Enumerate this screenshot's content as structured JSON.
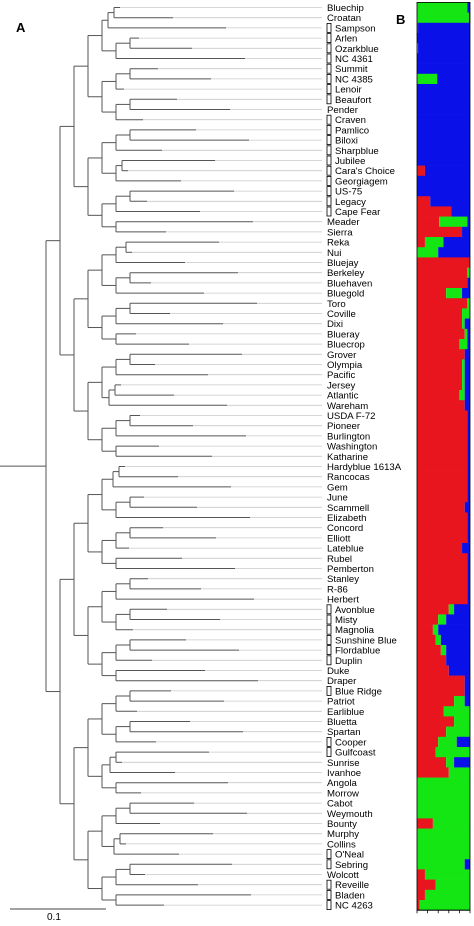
{
  "panels": {
    "a": "A",
    "b": "B"
  },
  "scale_bar_label": "0.1",
  "colors": {
    "red": "#e8141e",
    "green": "#14e614",
    "blue": "#0a10e8",
    "tree": "#555555",
    "terminal": "#c9c9c9"
  },
  "cultivars": [
    {
      "name": "Bluechip",
      "bracket": false
    },
    {
      "name": "Croatan",
      "bracket": false
    },
    {
      "name": "Sampson",
      "bracket": true
    },
    {
      "name": "Arlen",
      "bracket": true
    },
    {
      "name": "Ozarkblue",
      "bracket": true
    },
    {
      "name": "NC 4361",
      "bracket": true
    },
    {
      "name": "Summit",
      "bracket": true
    },
    {
      "name": "NC 4385",
      "bracket": true
    },
    {
      "name": "Lenoir",
      "bracket": true
    },
    {
      "name": "Beaufort",
      "bracket": true
    },
    {
      "name": "Pender",
      "bracket": false
    },
    {
      "name": "Craven",
      "bracket": true
    },
    {
      "name": "Pamlico",
      "bracket": true
    },
    {
      "name": "Biloxi",
      "bracket": true
    },
    {
      "name": "Sharpblue",
      "bracket": true
    },
    {
      "name": "Jubilee",
      "bracket": true
    },
    {
      "name": "Cara's Choice",
      "bracket": true
    },
    {
      "name": "Georgiagem",
      "bracket": true
    },
    {
      "name": "US-75",
      "bracket": true
    },
    {
      "name": "Legacy",
      "bracket": true
    },
    {
      "name": "Cape Fear",
      "bracket": true
    },
    {
      "name": "Meader",
      "bracket": false
    },
    {
      "name": "Sierra",
      "bracket": false
    },
    {
      "name": "Reka",
      "bracket": false
    },
    {
      "name": "Nui",
      "bracket": false
    },
    {
      "name": "Bluejay",
      "bracket": false
    },
    {
      "name": "Berkeley",
      "bracket": false
    },
    {
      "name": "Bluehaven",
      "bracket": false
    },
    {
      "name": "Bluegold",
      "bracket": false
    },
    {
      "name": "Toro",
      "bracket": false
    },
    {
      "name": "Coville",
      "bracket": false
    },
    {
      "name": "Dixi",
      "bracket": false
    },
    {
      "name": "Blueray",
      "bracket": false
    },
    {
      "name": "Bluecrop",
      "bracket": false
    },
    {
      "name": "Grover",
      "bracket": false
    },
    {
      "name": "Olympia",
      "bracket": false
    },
    {
      "name": "Pacific",
      "bracket": false
    },
    {
      "name": "Jersey",
      "bracket": false
    },
    {
      "name": "Atlantic",
      "bracket": false
    },
    {
      "name": "Wareham",
      "bracket": false
    },
    {
      "name": "USDA F-72",
      "bracket": false
    },
    {
      "name": "Pioneer",
      "bracket": false
    },
    {
      "name": "Burlington",
      "bracket": false
    },
    {
      "name": "Washington",
      "bracket": false
    },
    {
      "name": "Katharine",
      "bracket": false
    },
    {
      "name": "Hardyblue 1613A",
      "bracket": false
    },
    {
      "name": "Rancocas",
      "bracket": false
    },
    {
      "name": "Gem",
      "bracket": false
    },
    {
      "name": "June",
      "bracket": false
    },
    {
      "name": "Scammell",
      "bracket": false
    },
    {
      "name": "Elizabeth",
      "bracket": false
    },
    {
      "name": "Concord",
      "bracket": false
    },
    {
      "name": "Elliott",
      "bracket": false
    },
    {
      "name": "Lateblue",
      "bracket": false
    },
    {
      "name": "Rubel",
      "bracket": false
    },
    {
      "name": "Pemberton",
      "bracket": false
    },
    {
      "name": "Stanley",
      "bracket": false
    },
    {
      "name": "R-86",
      "bracket": false
    },
    {
      "name": "Herbert",
      "bracket": false
    },
    {
      "name": "Avonblue",
      "bracket": true
    },
    {
      "name": "Misty",
      "bracket": true
    },
    {
      "name": "Magnolia",
      "bracket": true
    },
    {
      "name": "Sunshine Blue",
      "bracket": true
    },
    {
      "name": "Flordablue",
      "bracket": true
    },
    {
      "name": "Duplin",
      "bracket": true
    },
    {
      "name": "Duke",
      "bracket": false
    },
    {
      "name": "Draper",
      "bracket": false
    },
    {
      "name": "Blue Ridge",
      "bracket": true
    },
    {
      "name": "Patriot",
      "bracket": false
    },
    {
      "name": "Earliblue",
      "bracket": false
    },
    {
      "name": "Bluetta",
      "bracket": false
    },
    {
      "name": "Spartan",
      "bracket": false
    },
    {
      "name": "Cooper",
      "bracket": true
    },
    {
      "name": "Gulfcoast",
      "bracket": true
    },
    {
      "name": "Sunrise",
      "bracket": false
    },
    {
      "name": "Ivanhoe",
      "bracket": false
    },
    {
      "name": "Angola",
      "bracket": false
    },
    {
      "name": "Morrow",
      "bracket": false
    },
    {
      "name": "Cabot",
      "bracket": false
    },
    {
      "name": "Weymouth",
      "bracket": false
    },
    {
      "name": "Bounty",
      "bracket": false
    },
    {
      "name": "Murphy",
      "bracket": false
    },
    {
      "name": "Collins",
      "bracket": false
    },
    {
      "name": "O'Neal",
      "bracket": true
    },
    {
      "name": "Sebring",
      "bracket": true
    },
    {
      "name": "Wolcott",
      "bracket": false
    },
    {
      "name": "Reveille",
      "bracket": true
    },
    {
      "name": "Bladen",
      "bracket": true
    },
    {
      "name": "NC 4263",
      "bracket": true
    }
  ],
  "structure": [
    [
      0.0,
      0.95,
      0.05
    ],
    [
      0.0,
      0.98,
      0.02
    ],
    [
      0.02,
      0.0,
      0.98
    ],
    [
      0.0,
      0.0,
      1.0
    ],
    [
      0.0,
      0.02,
      0.98
    ],
    [
      0.0,
      0.0,
      1.0
    ],
    [
      0.0,
      0.0,
      1.0
    ],
    [
      0.0,
      0.38,
      0.62
    ],
    [
      0.0,
      0.0,
      1.0
    ],
    [
      0.0,
      0.0,
      1.0
    ],
    [
      0.0,
      0.0,
      1.0
    ],
    [
      0.0,
      0.0,
      1.0
    ],
    [
      0.0,
      0.0,
      1.0
    ],
    [
      0.0,
      0.0,
      1.0
    ],
    [
      0.0,
      0.0,
      1.0
    ],
    [
      0.0,
      0.0,
      1.0
    ],
    [
      0.15,
      0.0,
      0.85
    ],
    [
      0.0,
      0.0,
      1.0
    ],
    [
      0.0,
      0.0,
      1.0
    ],
    [
      0.25,
      0.0,
      0.75
    ],
    [
      0.65,
      0.0,
      0.35
    ],
    [
      0.42,
      0.53,
      0.05
    ],
    [
      0.85,
      0.0,
      0.15
    ],
    [
      0.15,
      0.35,
      0.5
    ],
    [
      0.0,
      0.4,
      0.6
    ],
    [
      1.0,
      0.0,
      0.0
    ],
    [
      0.95,
      0.05,
      0.0
    ],
    [
      0.95,
      0.0,
      0.05
    ],
    [
      0.55,
      0.3,
      0.15
    ],
    [
      0.95,
      0.05,
      0.0
    ],
    [
      0.85,
      0.15,
      0.0
    ],
    [
      0.85,
      0.05,
      0.1
    ],
    [
      0.9,
      0.05,
      0.05
    ],
    [
      0.8,
      0.15,
      0.05
    ],
    [
      0.9,
      0.0,
      0.1
    ],
    [
      0.85,
      0.05,
      0.1
    ],
    [
      0.85,
      0.05,
      0.1
    ],
    [
      0.85,
      0.05,
      0.1
    ],
    [
      0.8,
      0.1,
      0.1
    ],
    [
      0.9,
      0.0,
      0.1
    ],
    [
      0.95,
      0.0,
      0.05
    ],
    [
      0.95,
      0.0,
      0.05
    ],
    [
      0.95,
      0.0,
      0.05
    ],
    [
      0.95,
      0.0,
      0.05
    ],
    [
      0.95,
      0.0,
      0.05
    ],
    [
      0.95,
      0.0,
      0.05
    ],
    [
      0.95,
      0.0,
      0.05
    ],
    [
      0.95,
      0.0,
      0.05
    ],
    [
      0.95,
      0.0,
      0.05
    ],
    [
      0.9,
      0.0,
      0.1
    ],
    [
      0.95,
      0.0,
      0.05
    ],
    [
      0.95,
      0.0,
      0.05
    ],
    [
      0.95,
      0.0,
      0.05
    ],
    [
      0.85,
      0.0,
      0.15
    ],
    [
      0.95,
      0.0,
      0.05
    ],
    [
      0.95,
      0.0,
      0.05
    ],
    [
      0.95,
      0.0,
      0.05
    ],
    [
      0.95,
      0.0,
      0.05
    ],
    [
      0.95,
      0.0,
      0.05
    ],
    [
      0.6,
      0.1,
      0.3
    ],
    [
      0.4,
      0.15,
      0.45
    ],
    [
      0.3,
      0.1,
      0.6
    ],
    [
      0.35,
      0.1,
      0.55
    ],
    [
      0.45,
      0.1,
      0.45
    ],
    [
      0.55,
      0.0,
      0.45
    ],
    [
      0.6,
      0.0,
      0.4
    ],
    [
      0.9,
      0.0,
      0.1
    ],
    [
      0.9,
      0.0,
      0.1
    ],
    [
      0.7,
      0.2,
      0.1
    ],
    [
      0.5,
      0.5,
      0.0
    ],
    [
      0.7,
      0.3,
      0.0
    ],
    [
      0.55,
      0.45,
      0.0
    ],
    [
      0.4,
      0.35,
      0.25
    ],
    [
      0.35,
      0.65,
      0.0
    ],
    [
      0.55,
      0.15,
      0.3
    ],
    [
      0.6,
      0.4,
      0.0
    ],
    [
      0.0,
      1.0,
      0.0
    ],
    [
      0.0,
      1.0,
      0.0
    ],
    [
      0.0,
      1.0,
      0.0
    ],
    [
      0.0,
      1.0,
      0.0
    ],
    [
      0.3,
      0.7,
      0.0
    ],
    [
      0.0,
      1.0,
      0.0
    ],
    [
      0.0,
      1.0,
      0.0
    ],
    [
      0.0,
      1.0,
      0.0
    ],
    [
      0.0,
      0.9,
      0.1
    ],
    [
      0.15,
      0.85,
      0.0
    ],
    [
      0.35,
      0.65,
      0.0
    ],
    [
      0.15,
      0.85,
      0.0
    ],
    [
      0.05,
      0.95,
      0.0
    ]
  ]
}
